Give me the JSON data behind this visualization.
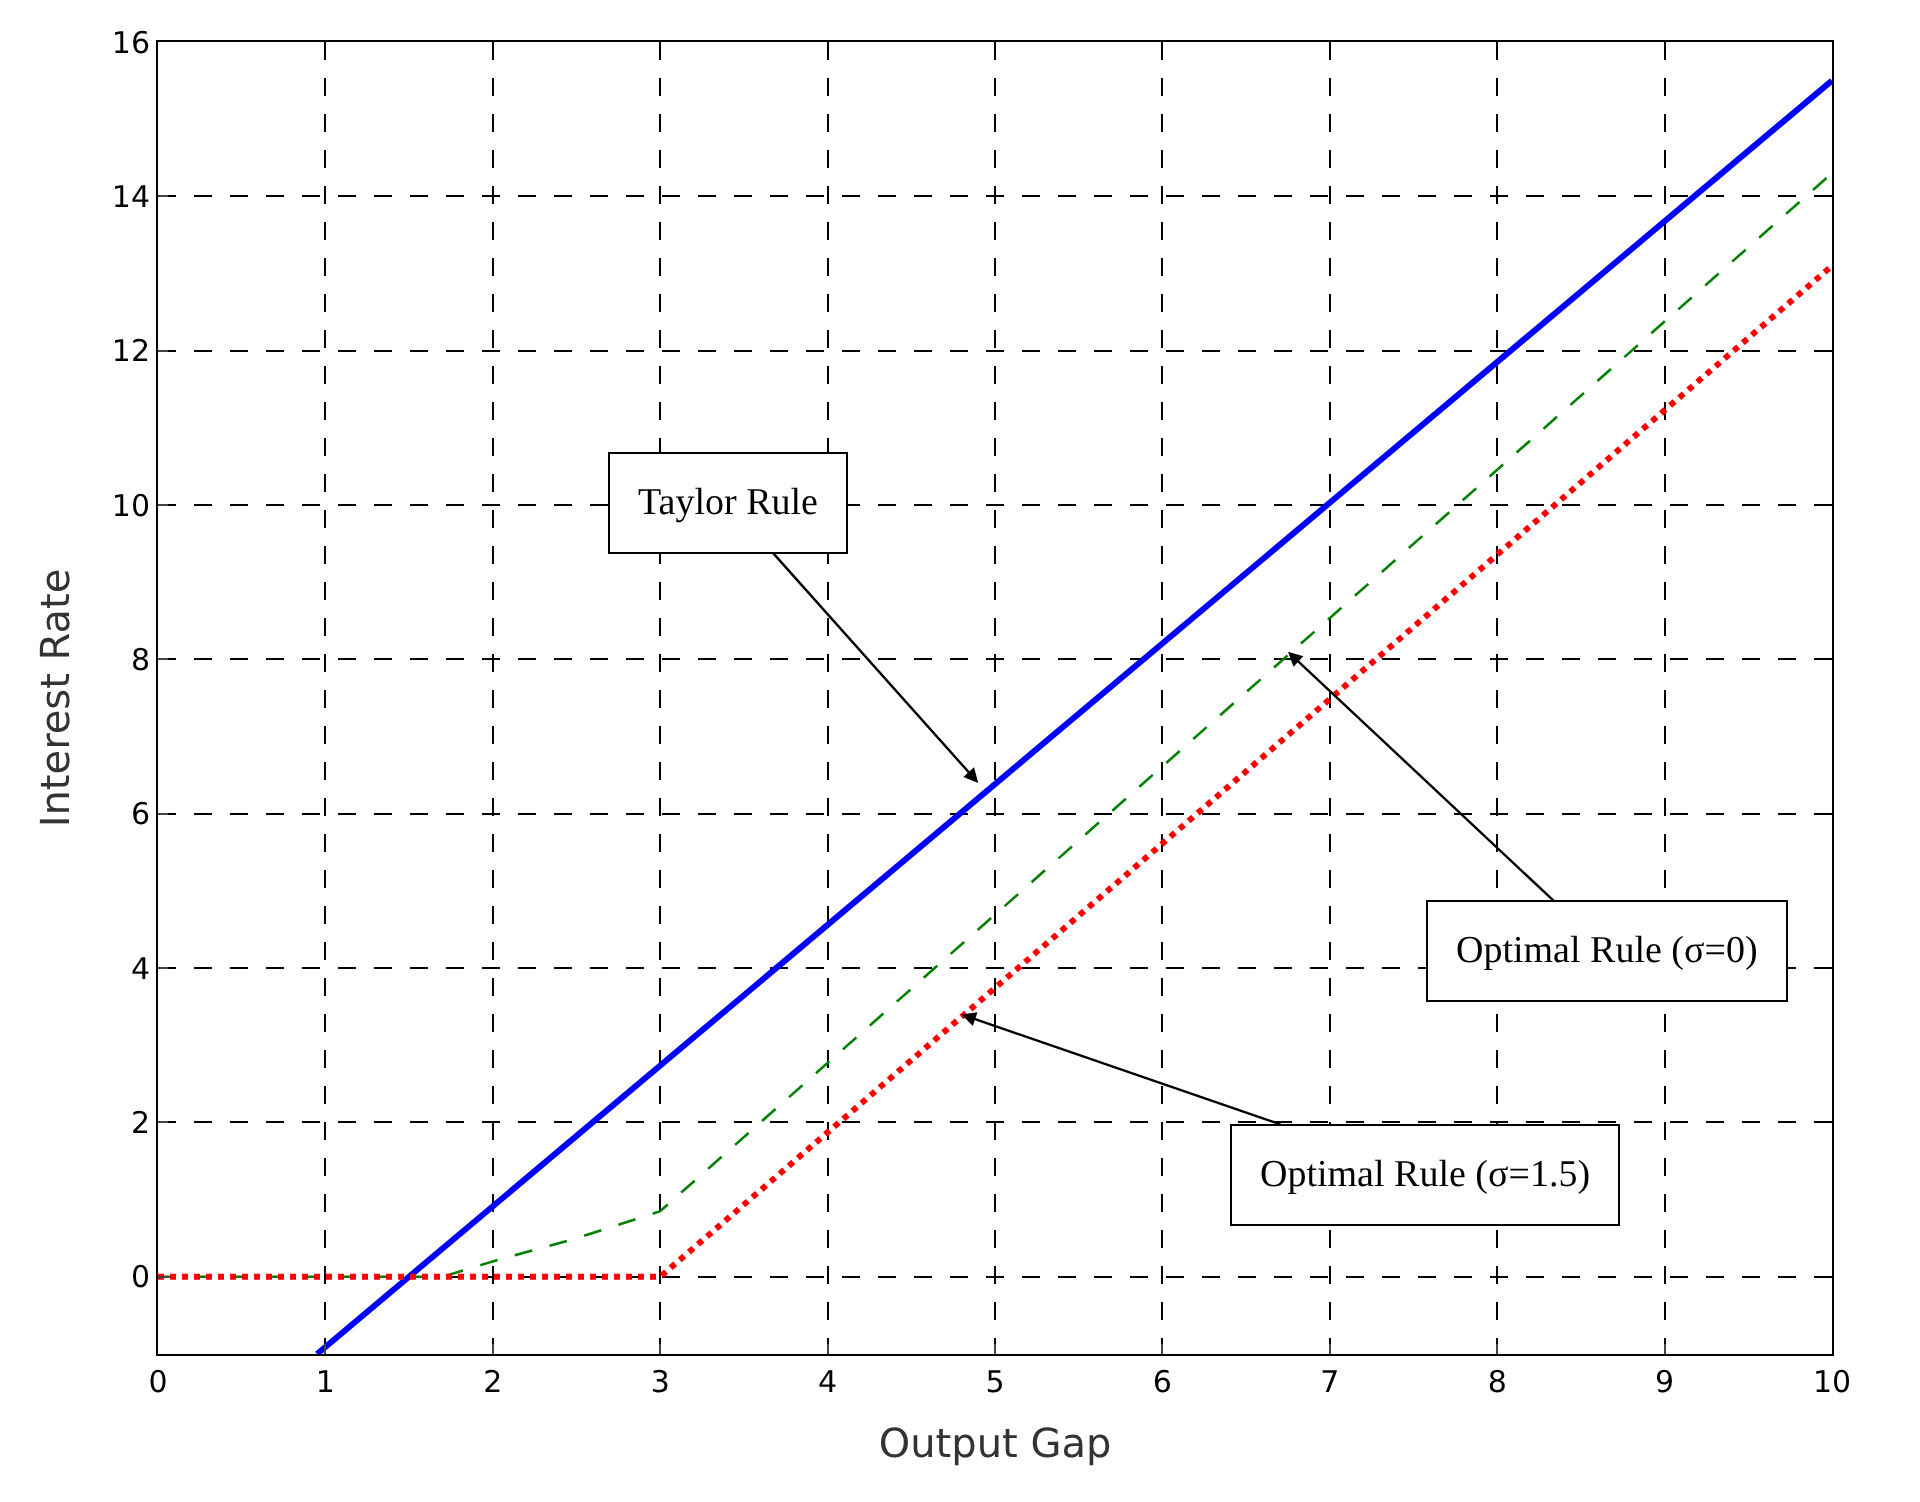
{
  "chart_data": {
    "type": "line",
    "xlabel": "Output Gap",
    "ylabel": "Interest Rate",
    "xlim": [
      0,
      10
    ],
    "xticks": [
      0,
      1,
      2,
      3,
      4,
      5,
      6,
      7,
      8,
      9,
      10
    ],
    "ylim": [
      -1,
      16
    ],
    "yticks": [
      0,
      2,
      4,
      6,
      8,
      10,
      12,
      14,
      16
    ],
    "grid": true,
    "legend": false,
    "marker": "none",
    "series": [
      {
        "color": "#0000ff",
        "line_style": "solid",
        "x": [
          0.95,
          10
        ],
        "values": [
          -1,
          15.5
        ]
      },
      {
        "color": "#008000",
        "line_style": "dashed",
        "x": [
          0,
          1.7,
          2,
          2.5,
          3,
          10
        ],
        "values": [
          0,
          0,
          0.2,
          0.5,
          0.85,
          14.3
        ]
      },
      {
        "color": "#ff0000",
        "line_style": "dotted",
        "x": [
          0,
          3,
          10
        ],
        "values": [
          0,
          0,
          13.1
        ]
      }
    ],
    "annotations": [
      {
        "text": "Taylor Rule",
        "x": 4.9,
        "y": 6.4
      },
      {
        "text": "Optimal Rule (σ=0)",
        "x": 6.75,
        "y": 8.1
      },
      {
        "text": "Optimal Rule (σ=1.5)",
        "x": 4.8,
        "y": 3.4
      }
    ]
  }
}
